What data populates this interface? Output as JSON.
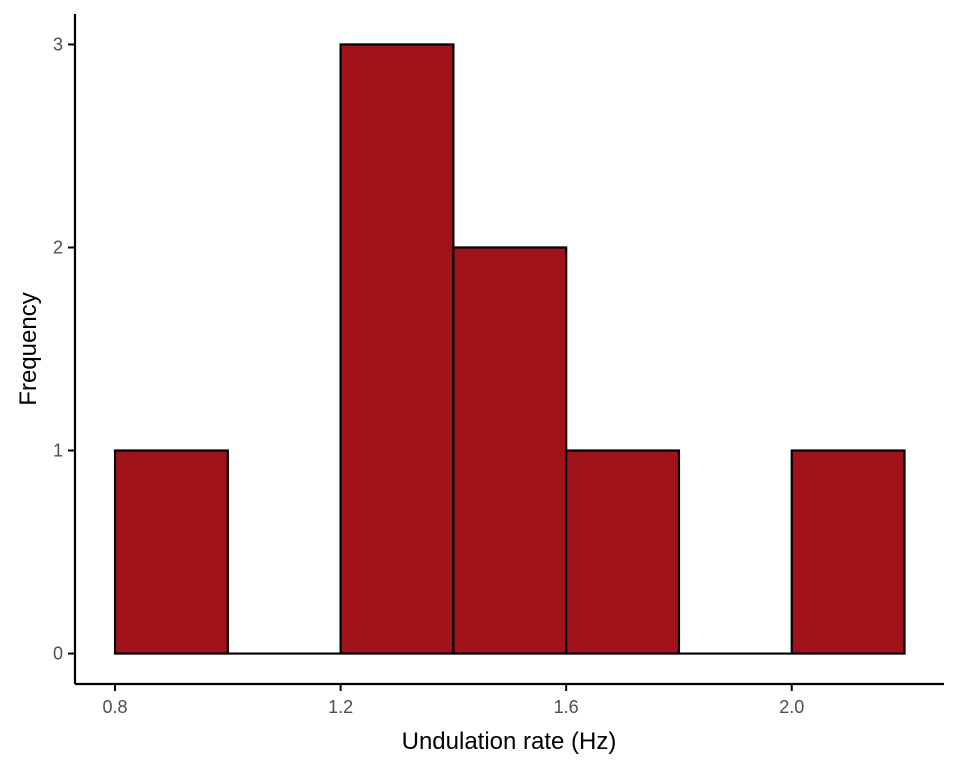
{
  "chart_data": {
    "type": "bar",
    "subtype": "histogram",
    "bins": [
      {
        "x0": 0.8,
        "x1": 1.0,
        "count": 1
      },
      {
        "x0": 1.0,
        "x1": 1.2,
        "count": 0
      },
      {
        "x0": 1.2,
        "x1": 1.4,
        "count": 3
      },
      {
        "x0": 1.4,
        "x1": 1.6,
        "count": 2
      },
      {
        "x0": 1.6,
        "x1": 1.8,
        "count": 1
      },
      {
        "x0": 1.8,
        "x1": 2.0,
        "count": 0
      },
      {
        "x0": 2.0,
        "x1": 2.2,
        "count": 1
      }
    ],
    "xlabel": "Undulation rate (Hz)",
    "ylabel": "Frequency",
    "xticks": [
      0.8,
      1.2,
      1.6,
      2.0
    ],
    "xtick_labels": [
      "0.8",
      "1.2",
      "1.6",
      "2.0"
    ],
    "yticks": [
      0,
      1,
      2,
      3
    ],
    "ytick_labels": [
      "0",
      "1",
      "2",
      "3"
    ],
    "xlim": [
      0.729,
      2.27
    ],
    "ylim": [
      -0.15,
      3.15
    ],
    "grid": false,
    "legend": "none",
    "colors": {
      "bar_fill": "#a0131b",
      "bar_stroke": "#000000",
      "axis": "#000000",
      "tick_label": "#4d4d4d",
      "title": "#000000"
    }
  }
}
